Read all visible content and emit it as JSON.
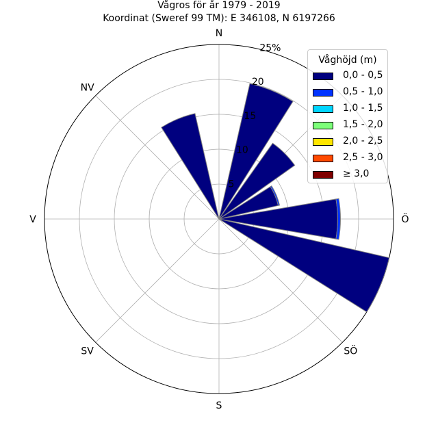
{
  "chart_data": {
    "type": "polar-stacked-bar",
    "title": "Vågros för år 1979 - 2019",
    "subtitle": "Koordinat (Sweref 99 TM): E 346108, N 6197266",
    "directions": [
      "N",
      "NNÖ",
      "NÖ",
      "ÖNÖ",
      "Ö",
      "ÖSÖ",
      "SÖ",
      "SSÖ",
      "S",
      "SSV",
      "SV",
      "VSV",
      "V",
      "VNV",
      "NV",
      "NNV"
    ],
    "direction_labels": [
      "N",
      "NV",
      "V",
      "SV",
      "S",
      "SÖ",
      "Ö"
    ],
    "r_ticks": [
      "5",
      "10",
      "15",
      "20",
      "25%"
    ],
    "r_max": 25,
    "legend_title": "Våghöjd (m)",
    "series": [
      {
        "name": "0,0 - 0,5",
        "color": "#00007f",
        "values": [
          0.0,
          19.9,
          13.3,
          8.7,
          17.0,
          25.0,
          0.0,
          0.0,
          0.0,
          0.0,
          0.0,
          0.0,
          0.0,
          0.0,
          0.0,
          15.5
        ]
      },
      {
        "name": "0,5 - 1,0",
        "color": "#0033ff",
        "values": [
          0.0,
          0.0,
          0.0,
          0.2,
          0.4,
          0.0,
          0.0,
          0.0,
          0.0,
          0.0,
          0.0,
          0.0,
          0.0,
          0.0,
          0.0,
          0.0
        ]
      },
      {
        "name": "1,0 - 1,5",
        "color": "#00d5ff",
        "values": [
          0.0,
          0.0,
          0.0,
          0.0,
          0.0,
          0.0,
          0.0,
          0.0,
          0.0,
          0.0,
          0.0,
          0.0,
          0.0,
          0.0,
          0.0,
          0.0
        ]
      },
      {
        "name": "1,5 - 2,0",
        "color": "#7dff7a",
        "values": [
          0.0,
          0.0,
          0.0,
          0.0,
          0.0,
          0.0,
          0.0,
          0.0,
          0.0,
          0.0,
          0.0,
          0.0,
          0.0,
          0.0,
          0.0,
          0.0
        ]
      },
      {
        "name": "2,0 - 2,5",
        "color": "#ffe600",
        "values": [
          0.0,
          0.0,
          0.0,
          0.0,
          0.0,
          0.0,
          0.0,
          0.0,
          0.0,
          0.0,
          0.0,
          0.0,
          0.0,
          0.0,
          0.0,
          0.0
        ]
      },
      {
        "name": "2,5 - 3,0",
        "color": "#ff4a00",
        "values": [
          0.0,
          0.0,
          0.0,
          0.0,
          0.0,
          0.0,
          0.0,
          0.0,
          0.0,
          0.0,
          0.0,
          0.0,
          0.0,
          0.0,
          0.0,
          0.0
        ]
      },
      {
        "name": "≥ 3,0",
        "color": "#7f0000",
        "values": [
          0.0,
          0.0,
          0.0,
          0.0,
          0.0,
          0.0,
          0.0,
          0.0,
          0.0,
          0.0,
          0.0,
          0.0,
          0.0,
          0.0,
          0.0,
          0.0
        ]
      }
    ],
    "grid": true,
    "legend_position": "top-right"
  }
}
